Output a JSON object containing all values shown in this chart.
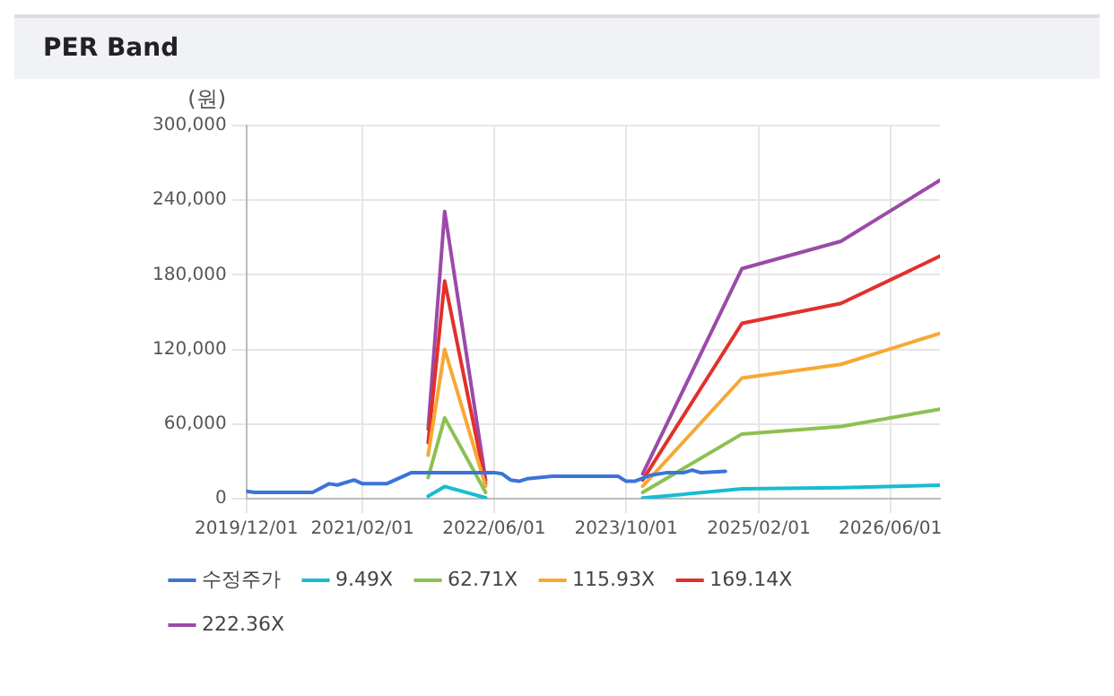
{
  "chart_data": {
    "type": "line",
    "title": "PER Band",
    "ylabel": "(원)",
    "xlim": [
      "2019-12-01",
      "2026-12-01"
    ],
    "xticks": [
      {
        "value": "2019-12-01",
        "label": "2019/12/01"
      },
      {
        "value": "2021-02-01",
        "label": "2021/02/01"
      },
      {
        "value": "2022-06-01",
        "label": "2022/06/01"
      },
      {
        "value": "2023-10-01",
        "label": "2023/10/01"
      },
      {
        "value": "2025-02-01",
        "label": "2025/02/01"
      },
      {
        "value": "2026-06-01",
        "label": "2026/06/01"
      }
    ],
    "ylim": [
      0,
      300000
    ],
    "yticks": [
      {
        "value": 0,
        "label": "0"
      },
      {
        "value": 60000,
        "label": "60,000"
      },
      {
        "value": 120000,
        "label": "120,000"
      },
      {
        "value": 180000,
        "label": "180,000"
      },
      {
        "value": 240000,
        "label": "240,000"
      },
      {
        "value": 300000,
        "label": "300,000"
      }
    ],
    "grid": true,
    "legend": "bottom",
    "marker": "none",
    "line_style": "solid",
    "series": [
      {
        "name": "수정주가",
        "color": "#3a74d8",
        "x": [
          "2019-12",
          "2020-01",
          "2020-05",
          "2020-08",
          "2020-10",
          "2020-11",
          "2021-01",
          "2021-02",
          "2021-05",
          "2021-06",
          "2021-08",
          "2022-06",
          "2022-07",
          "2022-08",
          "2022-09",
          "2022-10",
          "2023-01",
          "2023-09",
          "2023-10",
          "2023-11",
          "2024-01",
          "2024-03",
          "2024-05",
          "2024-06",
          "2024-07",
          "2024-10"
        ],
        "values": [
          6000,
          5000,
          5000,
          5000,
          12000,
          11000,
          15000,
          12000,
          12000,
          15000,
          21000,
          21000,
          20000,
          15000,
          14000,
          16000,
          18000,
          18000,
          14000,
          14000,
          19000,
          21000,
          21000,
          23000,
          21000,
          22000
        ]
      },
      {
        "name": "9.49X",
        "color": "#18bcd0",
        "x": [
          "2021-10",
          "2021-12",
          "2022-05",
          "2023-01",
          "2023-12",
          "2024-12",
          "2025-12",
          "2026-12"
        ],
        "values": [
          2000,
          9800,
          700,
          null,
          500,
          7900,
          8800,
          10900
        ]
      },
      {
        "name": "62.71X",
        "color": "#8cc152",
        "x": [
          "2021-10",
          "2021-12",
          "2022-05",
          "2023-01",
          "2023-12",
          "2024-12",
          "2025-12",
          "2026-12"
        ],
        "values": [
          17000,
          65000,
          5000,
          null,
          5000,
          52000,
          58000,
          72000
        ]
      },
      {
        "name": "115.93X",
        "color": "#f7a833",
        "x": [
          "2021-10",
          "2021-12",
          "2022-05",
          "2023-01",
          "2023-12",
          "2024-12",
          "2025-12",
          "2026-12"
        ],
        "values": [
          35000,
          120000,
          10000,
          null,
          10000,
          97000,
          108000,
          133000
        ]
      },
      {
        "name": "169.14X",
        "color": "#e2302b",
        "x": [
          "2021-10",
          "2021-12",
          "2022-05",
          "2023-01",
          "2023-12",
          "2024-12",
          "2025-12",
          "2026-12"
        ],
        "values": [
          45000,
          175000,
          12000,
          null,
          15000,
          141000,
          157000,
          195000
        ]
      },
      {
        "name": "222.36X",
        "color": "#9b4aa8",
        "x": [
          "2021-10",
          "2021-12",
          "2022-05",
          "2023-01",
          "2023-12",
          "2024-12",
          "2025-12",
          "2026-12"
        ],
        "values": [
          56000,
          231000,
          15000,
          null,
          20000,
          185000,
          207000,
          256000
        ]
      }
    ]
  }
}
